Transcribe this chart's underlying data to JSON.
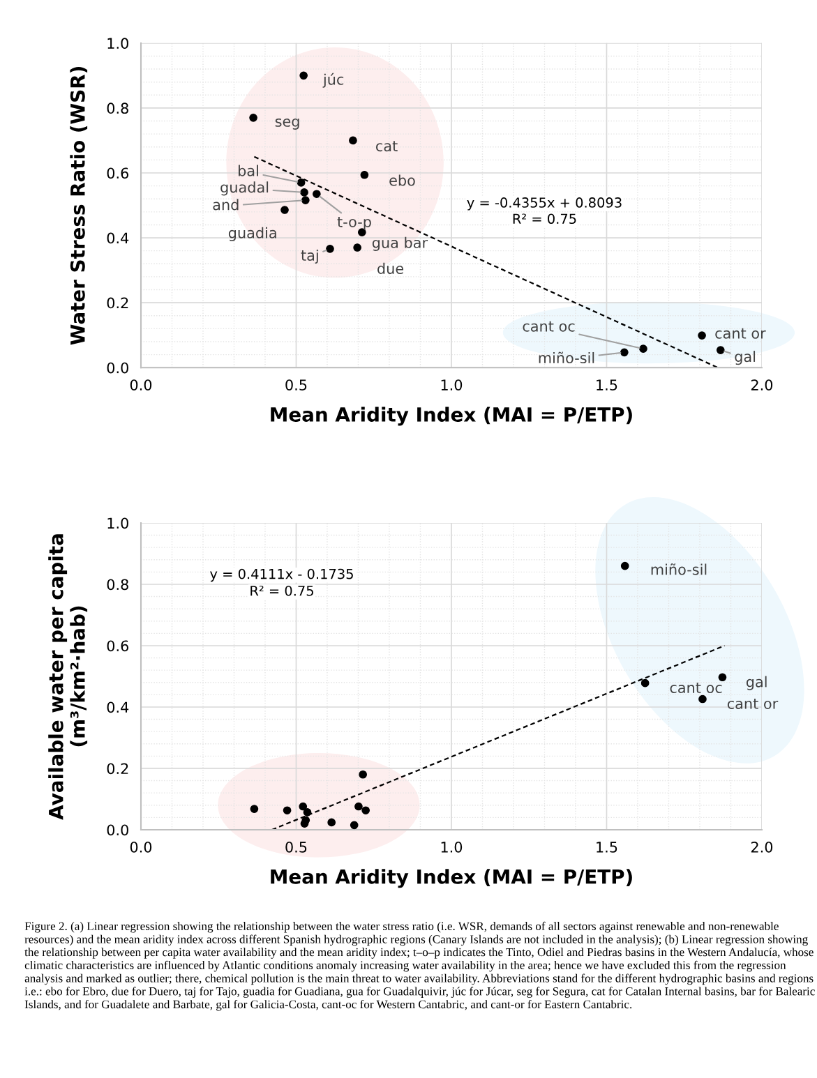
{
  "chart_data": [
    {
      "type": "scatter",
      "xlabel": "Mean Aridity Index (MAI = P/ETP)",
      "ylabel": "Water Stress Ratio (WSR)",
      "xlim": [
        0,
        2
      ],
      "ylim": [
        0,
        1
      ],
      "xticks": [
        {
          "value": 0,
          "label": "0.0"
        },
        {
          "value": 0.5,
          "label": "0.5"
        },
        {
          "value": 1,
          "label": "1.0"
        },
        {
          "value": 1.5,
          "label": "1.5"
        },
        {
          "value": 2,
          "label": "2.0"
        }
      ],
      "yticks": [
        {
          "value": 0,
          "label": "0.0"
        },
        {
          "value": 0.2,
          "label": "0.2"
        },
        {
          "value": 0.4,
          "label": "0.4"
        },
        {
          "value": 0.6,
          "label": "0.6"
        },
        {
          "value": 0.8,
          "label": "0.8"
        },
        {
          "value": 1,
          "label": "1.0"
        }
      ],
      "grid": true,
      "legend": false,
      "series": [
        {
          "marker": "circle",
          "color": "#000000",
          "x": [
            0.524,
            0.362,
            0.683,
            0.72,
            0.516,
            0.526,
            0.53,
            0.566,
            0.463,
            0.712,
            0.697,
            0.609,
            1.618,
            1.557,
            1.807,
            1.867
          ],
          "values": [
            0.9,
            0.77,
            0.7,
            0.594,
            0.57,
            0.54,
            0.516,
            0.535,
            0.486,
            0.417,
            0.37,
            0.366,
            0.058,
            0.047,
            0.099,
            0.054
          ]
        },
        {
          "type": "line",
          "color": "#000000",
          "line_style": "dashed",
          "x": [
            0.365,
            1.858
          ],
          "values": [
            0.65,
            0.0
          ]
        }
      ],
      "annotations": [
        {
          "text": "júc",
          "x": 0.524,
          "y": 0.9
        },
        {
          "text": "seg",
          "x": 0.362,
          "y": 0.77
        },
        {
          "text": "cat",
          "x": 0.683,
          "y": 0.7
        },
        {
          "text": "ebo",
          "x": 0.72,
          "y": 0.594
        },
        {
          "text": "bal",
          "x": 0.516,
          "y": 0.57
        },
        {
          "text": "guadal",
          "x": 0.526,
          "y": 0.54
        },
        {
          "text": "and",
          "x": 0.53,
          "y": 0.516
        },
        {
          "text": "t-o-p",
          "x": 0.566,
          "y": 0.535
        },
        {
          "text": "guadia",
          "x": 0.463,
          "y": 0.486
        },
        {
          "text": "gua bar",
          "x": 0.712,
          "y": 0.417
        },
        {
          "text": "due",
          "x": 0.697,
          "y": 0.37
        },
        {
          "text": "taj",
          "x": 0.609,
          "y": 0.366
        },
        {
          "text": "cant oc",
          "x": 1.618,
          "y": 0.058
        },
        {
          "text": "miño-sil",
          "x": 1.557,
          "y": 0.047
        },
        {
          "text": "cant or",
          "x": 1.807,
          "y": 0.099
        },
        {
          "text": "gal",
          "x": 1.867,
          "y": 0.054
        },
        "y = -0.4355x + 0.8093",
        "R² = 0.75"
      ]
    },
    {
      "type": "scatter",
      "xlabel": "Mean Aridity Index (MAI = P/ETP)",
      "ylabel": "Available water per capita\n(m³/km²·hab)",
      "xlim": [
        0,
        2
      ],
      "ylim": [
        0,
        1
      ],
      "xticks": [
        {
          "value": 0,
          "label": "0.0"
        },
        {
          "value": 0.5,
          "label": "0.5"
        },
        {
          "value": 1,
          "label": "1.0"
        },
        {
          "value": 1.5,
          "label": "1.5"
        },
        {
          "value": 2,
          "label": "2.0"
        }
      ],
      "yticks": [
        {
          "value": 0,
          "label": "0.0"
        },
        {
          "value": 0.2,
          "label": "0.2"
        },
        {
          "value": 0.4,
          "label": "0.4"
        },
        {
          "value": 0.6,
          "label": "0.6"
        },
        {
          "value": 0.8,
          "label": "0.8"
        },
        {
          "value": 1,
          "label": "1.0"
        }
      ],
      "grid": true,
      "legend": false,
      "series": [
        {
          "marker": "circle",
          "color": "#000000",
          "x": [
            1.559,
            1.624,
            1.873,
            1.809,
            0.365,
            0.471,
            0.522,
            0.536,
            0.531,
            0.527,
            0.614,
            0.687,
            0.701,
            0.724,
            0.715
          ],
          "values": [
            0.86,
            0.478,
            0.497,
            0.426,
            0.068,
            0.063,
            0.076,
            0.057,
            0.031,
            0.02,
            0.024,
            0.015,
            0.076,
            0.063,
            0.18
          ]
        },
        {
          "type": "line",
          "color": "#000000",
          "line_style": "dashed",
          "x": [
            0.422,
            1.88
          ],
          "values": [
            0.0,
            0.6
          ]
        }
      ],
      "annotations": [
        {
          "text": "miño-sil",
          "x": 1.559,
          "y": 0.86
        },
        {
          "text": "cant oc",
          "x": 1.624,
          "y": 0.478
        },
        {
          "text": "gal",
          "x": 1.873,
          "y": 0.497
        },
        {
          "text": "cant or",
          "x": 1.809,
          "y": 0.426
        },
        "y = 0.4111x - 0.1735",
        "R² = 0.75",
        "Figure 2. (a) Linear regression showing the relationship between the water stress ratio (i.e. WSR, demands of all sectors against renewable and non-renewable resources) and the mean aridity index across different Spanish hydrographic regions (Canary Islands are not included in the analysis); (b) Linear regression showing the relationship between per capita water availability and the mean aridity index; t–o–p indicates the Tinto, Odiel and Piedras basins in the Western Andalucía, whose climatic characteristics are influenced by Atlantic conditions anomaly increasing water availability in the area; hence we have excluded this from the regression analysis and marked as outlier; there, chemical pollution is the main threat to water availability. Abbreviations stand for the different hydrographic basins and regions i.e.: ebo for Ebro, due for Duero, taj for Tajo, guadia for Guadiana, gua for Guadalquivir, júc for Júcar, seg for Segura, cat for Catalan Internal basins, bar for Balearic Islands, and for Guadalete and Barbate, gal for Galicia-Costa, cant-oc for Western Cantabric, and cant-or for Eastern Cantabric."
      ]
    }
  ]
}
